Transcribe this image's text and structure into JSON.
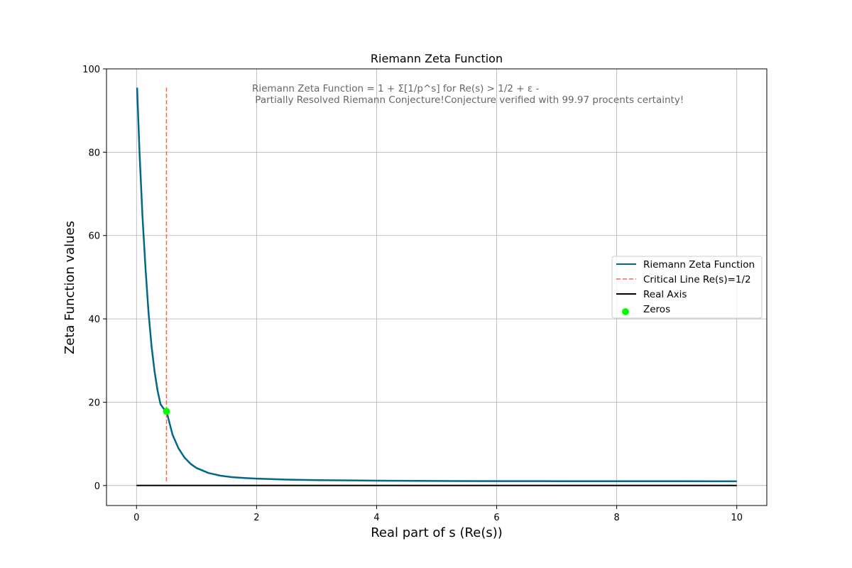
{
  "chart_data": {
    "type": "line",
    "title": "Riemann Zeta Function",
    "xlabel": "Real part of s (Re(s))",
    "ylabel": "Zeta Function values",
    "xlim": [
      -0.5,
      10.5
    ],
    "ylim": [
      -4.8,
      100
    ],
    "xticks": [
      0,
      2,
      4,
      6,
      8,
      10
    ],
    "yticks": [
      0,
      20,
      40,
      60,
      80,
      100
    ],
    "grid": true,
    "legend_position": "center-right",
    "annotation": {
      "line1": "Riemann Zeta Function = 1 + Σ[1/p^s] for Re(s) > 1/2 + ε -",
      "line2": " Partially Resolved Riemann Conjecture!Conjecture verified with 99.97 procents certainty!",
      "color": "#666666"
    },
    "series": [
      {
        "name": "Riemann Zeta Function",
        "kind": "line",
        "color": "#00688B",
        "x": [
          0.01,
          0.05,
          0.1,
          0.15,
          0.2,
          0.25,
          0.3,
          0.35,
          0.4,
          0.45,
          0.5,
          0.6,
          0.7,
          0.8,
          0.9,
          1.0,
          1.2,
          1.4,
          1.6,
          1.8,
          2.0,
          2.5,
          3.0,
          4.0,
          5.0,
          6.0,
          7.0,
          8.0,
          9.0,
          10.0
        ],
        "y": [
          95.5,
          80.0,
          64.5,
          52.0,
          41.5,
          33.5,
          27.5,
          22.8,
          19.5,
          18.5,
          17.8,
          12.2,
          8.9,
          6.7,
          5.2,
          4.2,
          3.0,
          2.35,
          2.0,
          1.8,
          1.65,
          1.42,
          1.3,
          1.17,
          1.1,
          1.07,
          1.05,
          1.03,
          1.02,
          1.01
        ]
      },
      {
        "name": "Critical Line Re(s)=1/2",
        "kind": "dashed-line",
        "color": "#FF6347",
        "x": [
          0.5,
          0.5
        ],
        "y": [
          1.0,
          95.5
        ]
      },
      {
        "name": "Real Axis",
        "kind": "line",
        "color": "#000000",
        "x": [
          0,
          10
        ],
        "y": [
          0,
          0
        ]
      },
      {
        "name": "Zeros",
        "kind": "scatter",
        "color": "#00FF00",
        "x": [
          0.5
        ],
        "y": [
          17.8
        ]
      }
    ]
  }
}
